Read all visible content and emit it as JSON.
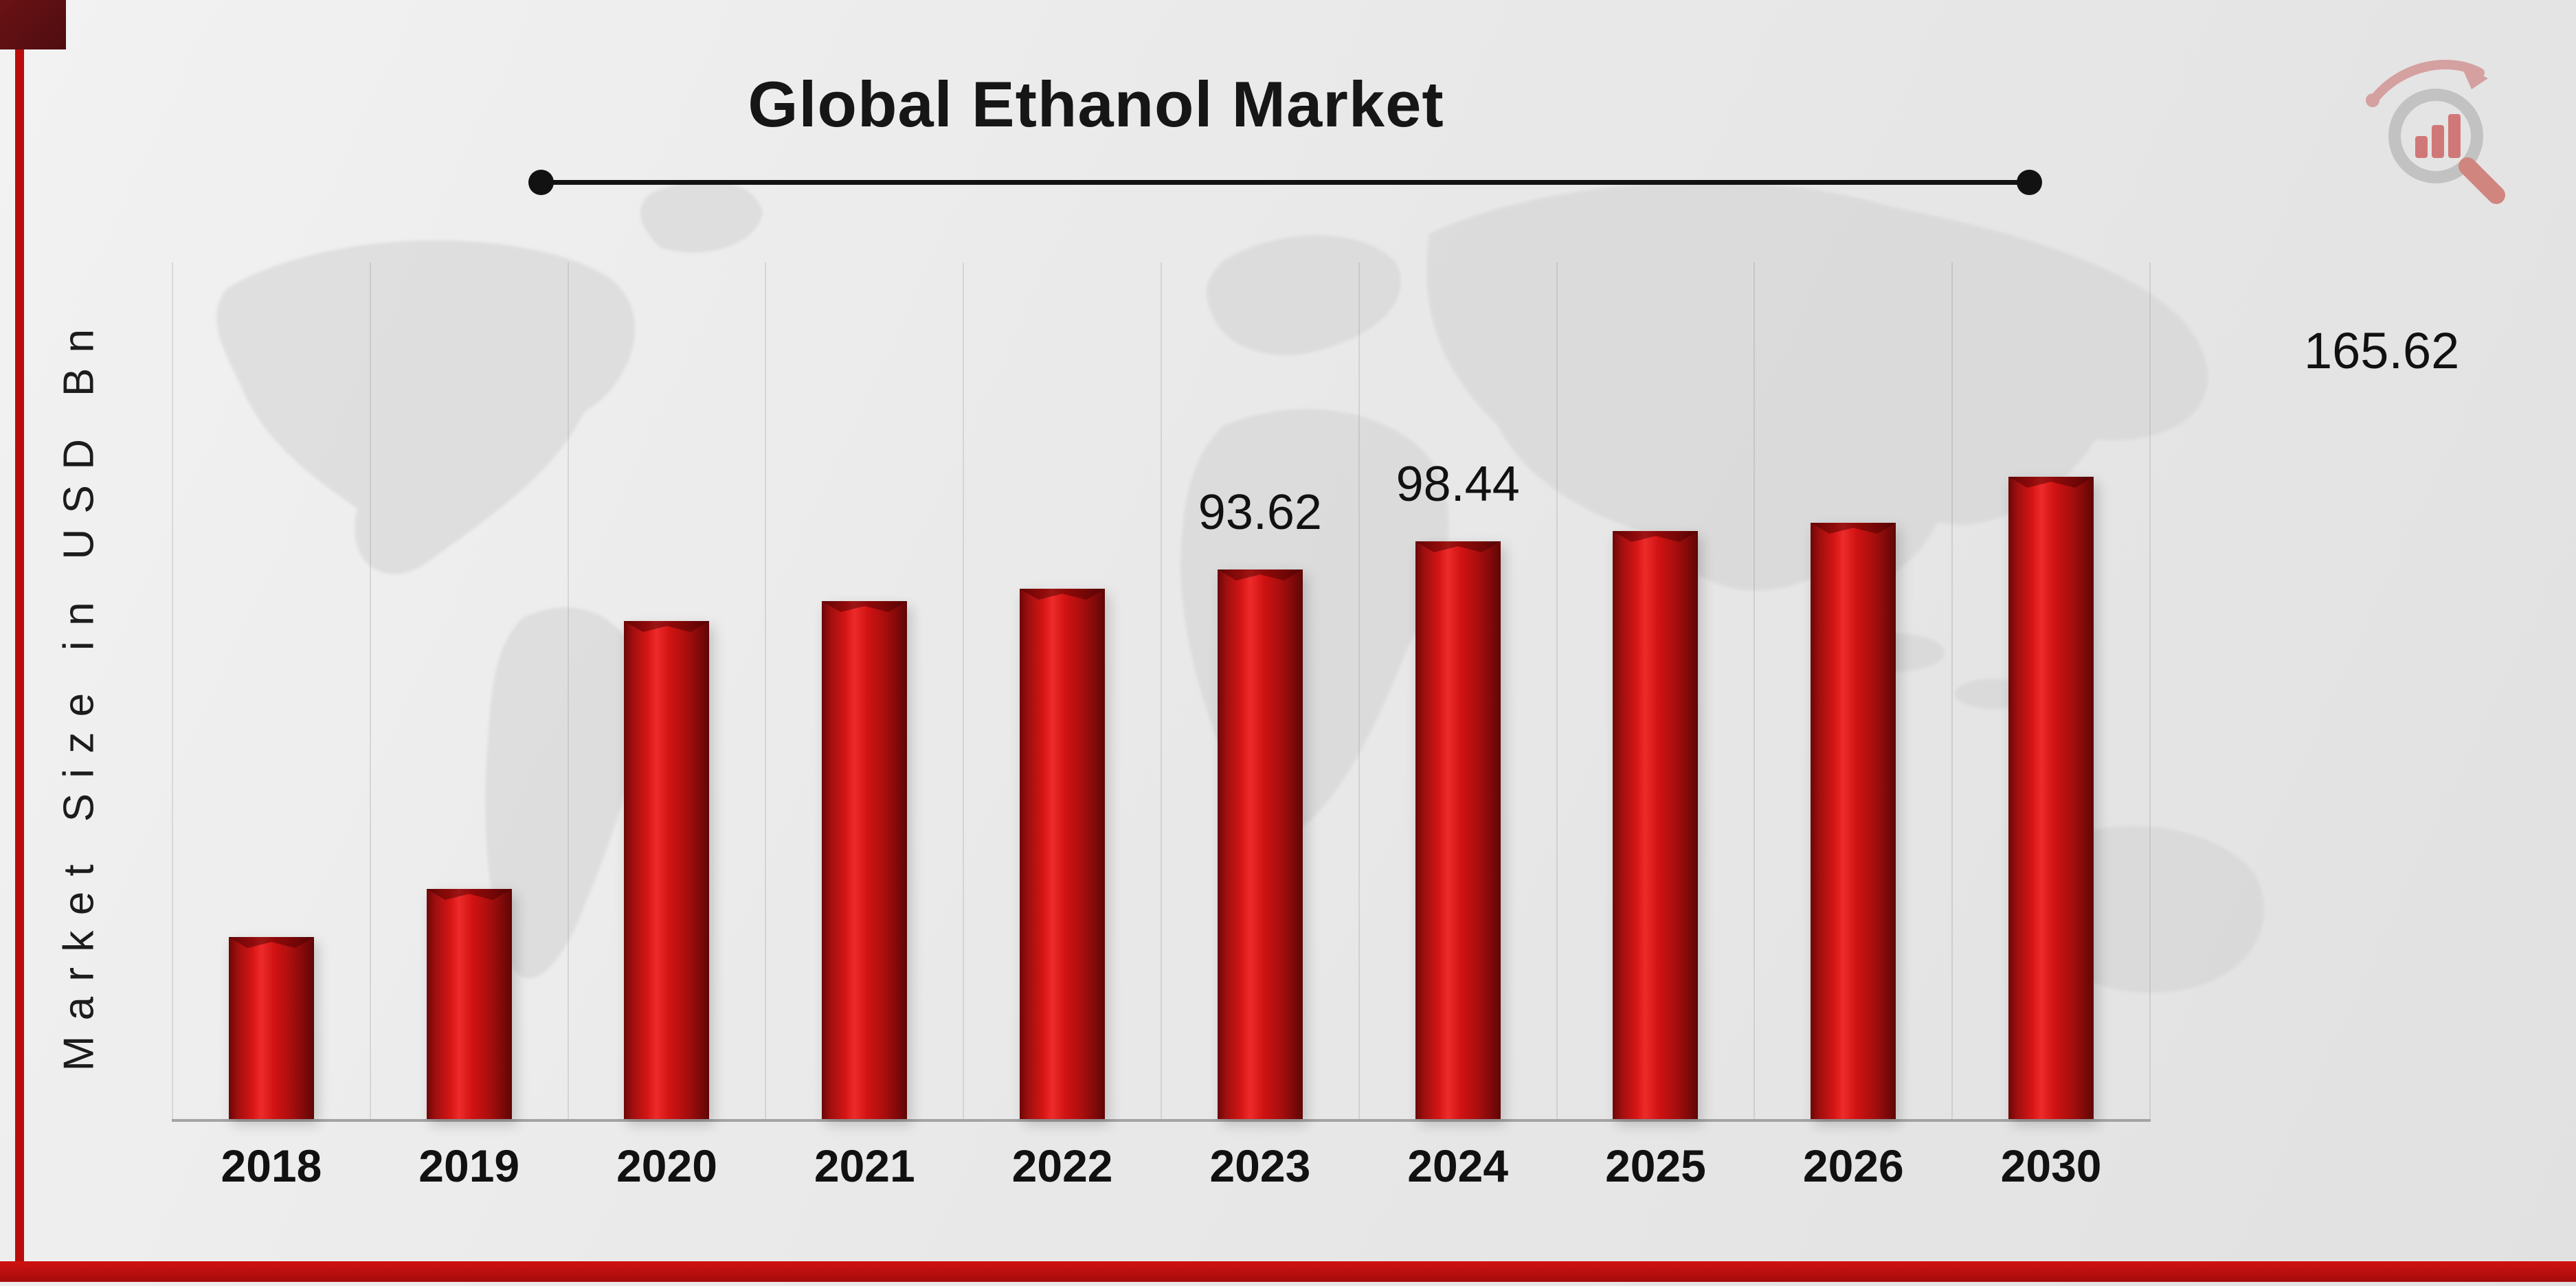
{
  "header": {
    "title": "Global Ethanol Market"
  },
  "logo": {
    "name": "market-research-future-logo"
  },
  "chart_data": {
    "type": "bar",
    "title": "Global Ethanol Market",
    "xlabel": "",
    "ylabel": "Market Size in USD Bn",
    "unit": "USD Bn",
    "bar_color": "#cf0f0f",
    "ylim": [
      0,
      180
    ],
    "grid": "vertical-column-separators",
    "legend": "none",
    "categories": [
      "2018",
      "2019",
      "2020",
      "2021",
      "2022",
      "2023",
      "2024",
      "2025",
      "2026",
      "2030"
    ],
    "bars": [
      {
        "year": "2018",
        "value": 31.0,
        "label": ""
      },
      {
        "year": "2019",
        "value": 39.2,
        "label": ""
      },
      {
        "year": "2020",
        "value": 84.8,
        "label": ""
      },
      {
        "year": "2021",
        "value": 88.2,
        "label": ""
      },
      {
        "year": "2022",
        "value": 90.3,
        "label": ""
      },
      {
        "year": "2023",
        "value": 93.62,
        "label": "93.62"
      },
      {
        "year": "2024",
        "value": 98.44,
        "label": "98.44"
      },
      {
        "year": "2025",
        "value": 100.2,
        "label": ""
      },
      {
        "year": "2026",
        "value": 101.6,
        "label": ""
      },
      {
        "year": "2030",
        "value": 165.62,
        "label": "",
        "display_value": 109.4
      }
    ],
    "annotations": [
      {
        "text": "165.62",
        "category": "2030",
        "position": "top-right"
      }
    ]
  }
}
